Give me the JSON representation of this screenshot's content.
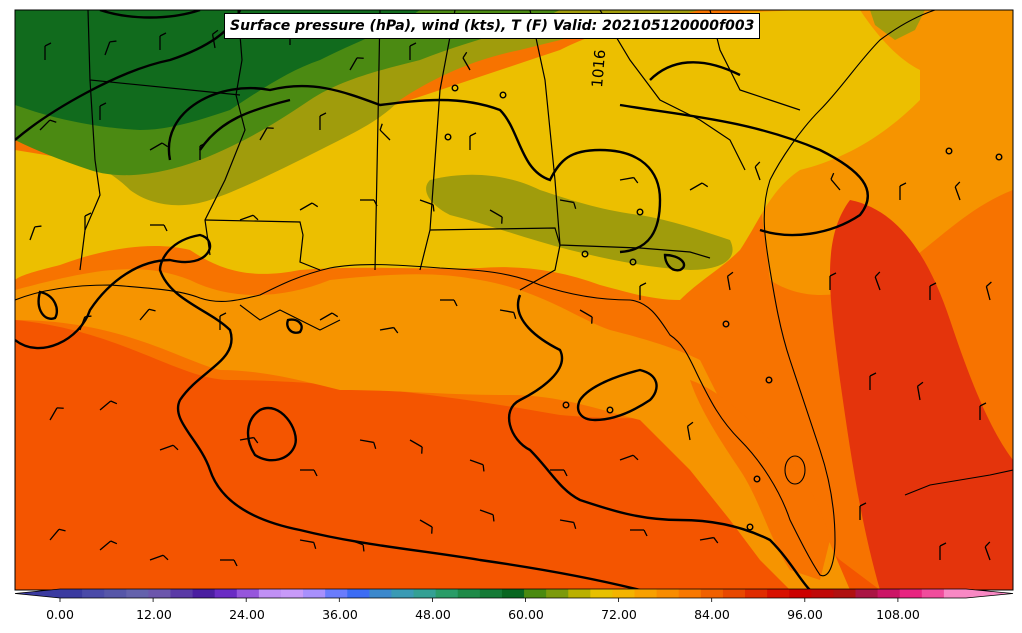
{
  "title": "Surface pressure (hPa), wind (kts), T (F) Valid: 202105120000f003",
  "isobar_label": "1016",
  "colorbar": {
    "tick_labels": [
      "0.00",
      "12.00",
      "24.00",
      "36.00",
      "48.00",
      "60.00",
      "72.00",
      "84.00",
      "96.00",
      "108.00"
    ],
    "colors": [
      "#3a3aa0",
      "#4a4aa8",
      "#5656a8",
      "#6462ac",
      "#6c56ac",
      "#5a3aa6",
      "#4a1ea0",
      "#6a2cc4",
      "#9656dc",
      "#c090f4",
      "#c89af8",
      "#a890fc",
      "#6a7cfc",
      "#3c6cf4",
      "#3c88cc",
      "#3a9ab4",
      "#34a094",
      "#2a9c68",
      "#1e8a48",
      "#147a36",
      "#086620",
      "#4a8a10",
      "#7c9a0c",
      "#bab000",
      "#e8c000",
      "#f4b400",
      "#f8a000",
      "#f88c00",
      "#f87800",
      "#f06000",
      "#e84800",
      "#e02c00",
      "#d81000",
      "#cc0000",
      "#c00808",
      "#b01010",
      "#aa1444",
      "#cc1466",
      "#e82480",
      "#f04c9c",
      "#f888c4"
    ],
    "extend": "both"
  },
  "temperature_colors": {
    "dark_green": "#116b1d",
    "green": "#4b8a12",
    "olive": "#a09c0c",
    "yellow": "#ecbf00",
    "orange": "#f69400",
    "dark_orange": "#f77300",
    "red_orange": "#f45500",
    "red": "#e4340c"
  }
}
